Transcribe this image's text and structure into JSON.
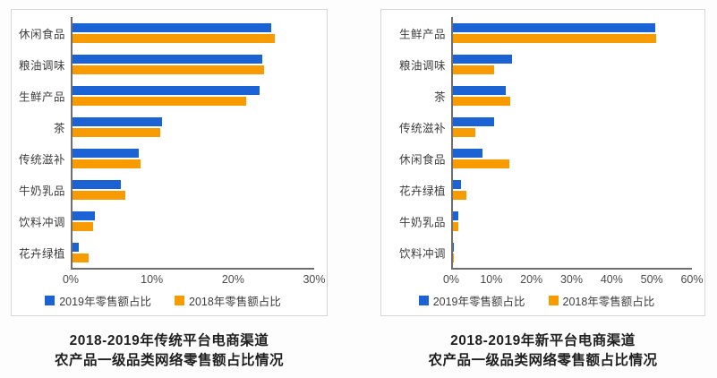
{
  "chart_data": [
    {
      "type": "bar",
      "orientation": "horizontal",
      "title": "2018-2019年传统平台电商渠道 农产品一级品类网络零售额占比情况",
      "title_lines": [
        "2018-2019年传统平台电商渠道",
        "农产品一级品类网络零售额占比情况"
      ],
      "categories": [
        "休闲食品",
        "粮油调味",
        "生鲜产品",
        "茶",
        "传统滋补",
        "牛奶乳品",
        "饮料冲调",
        "花卉绿植"
      ],
      "series": [
        {
          "name": "2019年零售额占比",
          "color": "#1B62D5",
          "values": [
            24.7,
            23.6,
            23.2,
            11.1,
            8.2,
            6.0,
            2.8,
            0.8
          ]
        },
        {
          "name": "2018年零售额占比",
          "color": "#F89B00",
          "values": [
            25.1,
            23.8,
            21.5,
            10.9,
            8.4,
            6.5,
            2.5,
            2.0
          ]
        }
      ],
      "xlim": [
        0,
        30
      ],
      "x_ticks": [
        "0%",
        "10%",
        "20%",
        "30%"
      ],
      "grid": false,
      "legend_position": "bottom"
    },
    {
      "type": "bar",
      "orientation": "horizontal",
      "title": "2018-2019年新平台电商渠道 农产品一级品类网络零售额占比情况",
      "title_lines": [
        "2018-2019年新平台电商渠道",
        "农产品一级品类网络零售额占比情况"
      ],
      "categories": [
        "生鲜产品",
        "粮油调味",
        "茶",
        "传统滋补",
        "休闲食品",
        "花卉绿植",
        "牛奶乳品",
        "饮料冲调"
      ],
      "series": [
        {
          "name": "2019年零售额占比",
          "color": "#1B62D5",
          "values": [
            50.8,
            14.8,
            13.2,
            10.3,
            7.4,
            2.1,
            1.4,
            0.1
          ]
        },
        {
          "name": "2018年零售额占比",
          "color": "#F89B00",
          "values": [
            51.1,
            10.3,
            14.4,
            5.6,
            14.2,
            3.4,
            1.3,
            0.1
          ]
        }
      ],
      "xlim": [
        0,
        60
      ],
      "x_ticks": [
        "0%",
        "10%",
        "20%",
        "30%",
        "40%",
        "50%",
        "60%"
      ],
      "grid": false,
      "legend_position": "bottom"
    }
  ]
}
